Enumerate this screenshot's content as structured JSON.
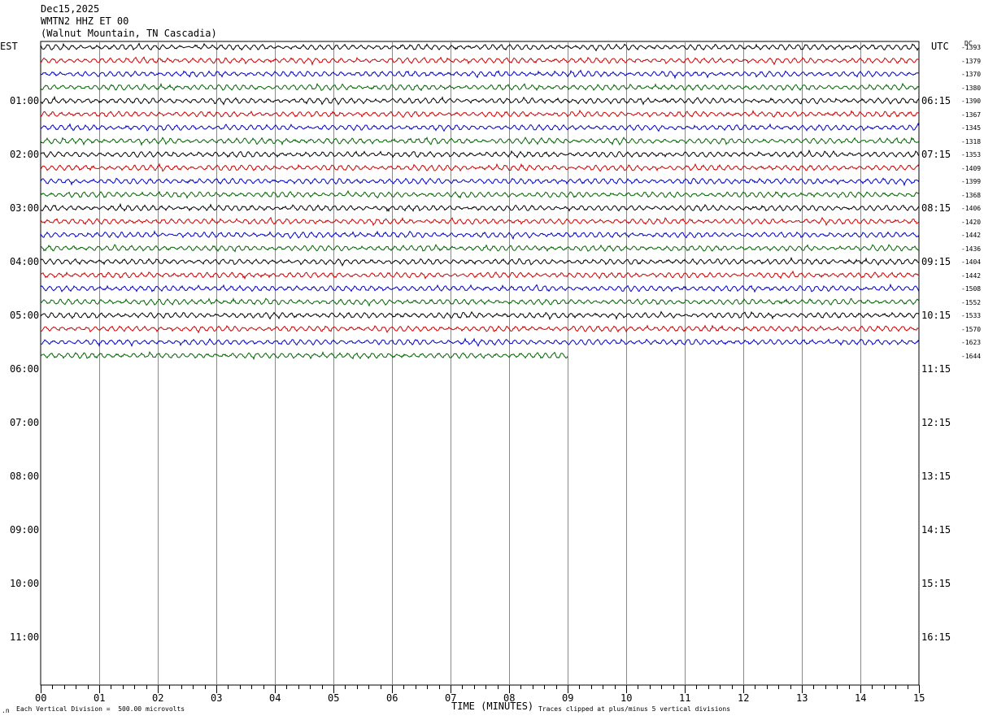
{
  "header": {
    "date": "Dec15,2025",
    "station": "WMTN2 HHZ ET 00",
    "location": "(Walnut Mountain, TN Cascadia)"
  },
  "labels": {
    "left_timezone": "EST",
    "right_timezone": "UTC",
    "dc": "DC",
    "xlabel": "TIME (MINUTES)",
    "scale_note": "Each Vertical Division =  500.00 microvolts",
    "clip_note": "Traces clipped at plus/minus 5 vertical divisions"
  },
  "chart_data": {
    "type": "line",
    "title": "",
    "xlabel": "TIME (MINUTES)",
    "xlim": [
      0,
      15
    ],
    "x_ticks": [
      "00",
      "01",
      "02",
      "03",
      "04",
      "05",
      "06",
      "07",
      "08",
      "09",
      "10",
      "11",
      "12",
      "13",
      "14",
      "15"
    ],
    "left_hour_labels": [
      "01:00",
      "02:00",
      "03:00",
      "04:00",
      "05:00",
      "06:00",
      "07:00",
      "08:00",
      "09:00",
      "10:00",
      "11:00"
    ],
    "right_hour_labels": [
      "06:15",
      "07:15",
      "08:15",
      "09:15",
      "10:15",
      "11:15",
      "12:15",
      "13:15",
      "14:15",
      "15:15",
      "16:15"
    ],
    "trace_colors": [
      "#000000",
      "#d00000",
      "#0000c8",
      "#006400"
    ],
    "traces": [
      {
        "dc": "-1393",
        "minutes": 15
      },
      {
        "dc": "-1379",
        "minutes": 15
      },
      {
        "dc": "-1370",
        "minutes": 15
      },
      {
        "dc": "-1380",
        "minutes": 15
      },
      {
        "dc": "-1390",
        "minutes": 15
      },
      {
        "dc": "-1367",
        "minutes": 15
      },
      {
        "dc": "-1345",
        "minutes": 15
      },
      {
        "dc": "-1318",
        "minutes": 15
      },
      {
        "dc": "-1353",
        "minutes": 15
      },
      {
        "dc": "-1409",
        "minutes": 15
      },
      {
        "dc": "-1399",
        "minutes": 15
      },
      {
        "dc": "-1368",
        "minutes": 15
      },
      {
        "dc": "-1406",
        "minutes": 15
      },
      {
        "dc": "-1420",
        "minutes": 15
      },
      {
        "dc": "-1442",
        "minutes": 15
      },
      {
        "dc": "-1436",
        "minutes": 15
      },
      {
        "dc": "-1404",
        "minutes": 15
      },
      {
        "dc": "-1442",
        "minutes": 15
      },
      {
        "dc": "-1508",
        "minutes": 15
      },
      {
        "dc": "-1552",
        "minutes": 15
      },
      {
        "dc": "-1533",
        "minutes": 15
      },
      {
        "dc": "-1570",
        "minutes": 15
      },
      {
        "dc": "-1623",
        "minutes": 15
      },
      {
        "dc": "-1644",
        "minutes": 9
      }
    ]
  }
}
